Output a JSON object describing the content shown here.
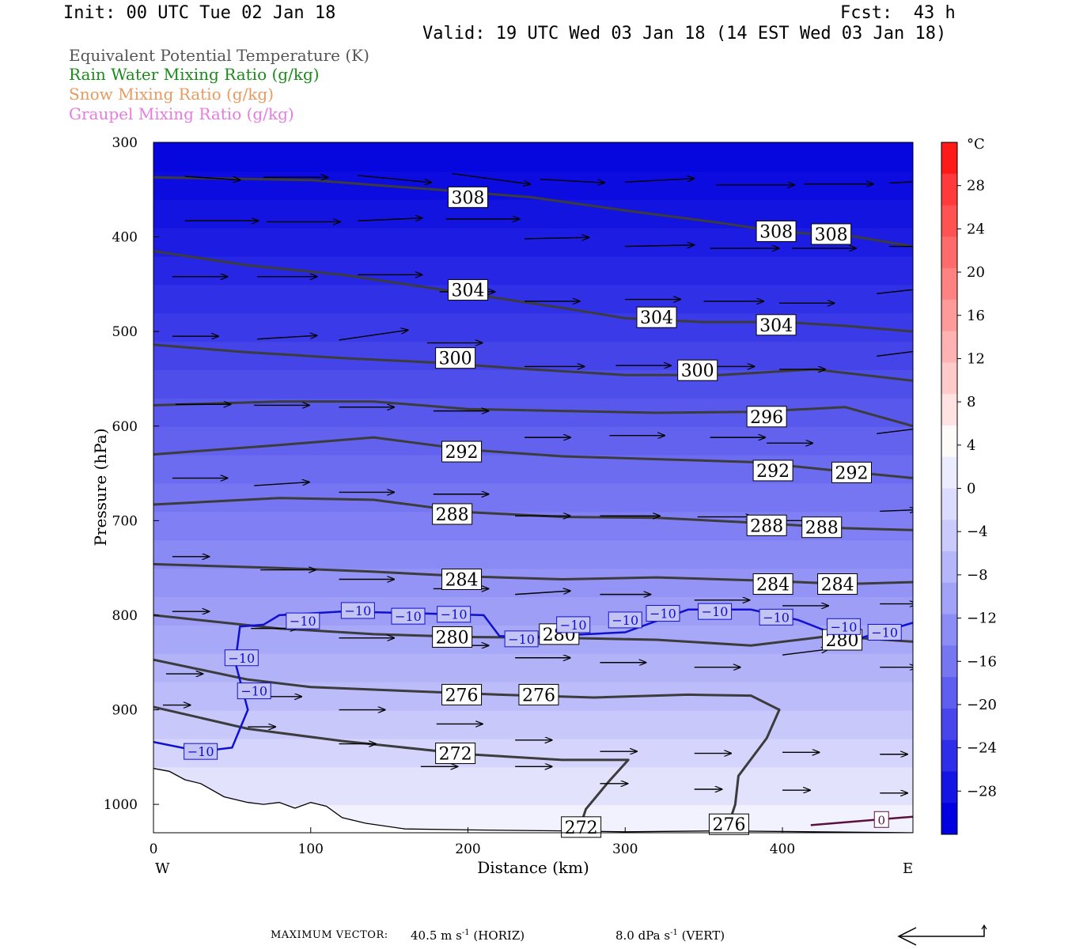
{
  "header": {
    "init": "Init: 00 UTC Tue 02 Jan 18",
    "fcst": "Fcst:  43 h",
    "valid": "Valid: 19 UTC Wed 03 Jan 18 (14 EST Wed 03 Jan 18)"
  },
  "fields": [
    {
      "label": "Equivalent Potential Temperature (K)",
      "color": "#555555"
    },
    {
      "label": "Rain Water Mixing Ratio (g/kg)",
      "color": "#1a8a1a"
    },
    {
      "label": "Snow Mixing Ratio (g/kg)",
      "color": "#e89a60"
    },
    {
      "label": "Graupel Mixing Ratio (g/kg)",
      "color": "#e87ae0"
    }
  ],
  "footer": {
    "max_vector_label": "MAXIMUM VECTOR:",
    "horiz": "40.5 m s",
    "horiz_unit": "-1",
    "horiz_tag": "(HORIZ)",
    "vert": "8.0 dPa s",
    "vert_unit": "-1",
    "vert_tag": "(VERT)"
  },
  "chart_data": {
    "type": "heatmap",
    "xlabel": "Distance (km)",
    "ylabel": "Pressure (hPa)",
    "xlim": [
      0,
      483
    ],
    "ylim": [
      1030,
      300
    ],
    "xticks": [
      0,
      100,
      200,
      300,
      400
    ],
    "yticks": [
      300,
      400,
      500,
      600,
      700,
      800,
      900,
      1000
    ],
    "x_end_labels": {
      "left": "W",
      "right": "E"
    },
    "colorbar": {
      "unit": "°C",
      "ticks": [
        28,
        24,
        20,
        16,
        12,
        8,
        4,
        0,
        -4,
        -8,
        -12,
        -16,
        -20,
        -24,
        -28
      ],
      "colors": [
        "#ff1a1a",
        "#ff3a3a",
        "#ff5252",
        "#ff6a6a",
        "#ff8282",
        "#ff9a9a",
        "#ffb2b2",
        "#ffcaca",
        "#ffe2e2",
        "#fffafa",
        "#ececff",
        "#dcdcff",
        "#cacafd",
        "#b6b6fb",
        "#a2a2f8",
        "#8c8cf6",
        "#7676f3",
        "#5e5ef0",
        "#4646ec",
        "#2e2ee8",
        "#1414e4",
        "#0000e0"
      ]
    },
    "temperature_band_levels_hPa": [
      1030,
      1000,
      960,
      930,
      900,
      870,
      840,
      810,
      780,
      750,
      720,
      690,
      660,
      630,
      600,
      570,
      540,
      510,
      480,
      450,
      420,
      390,
      360,
      330,
      300
    ],
    "temperature_band_colors": [
      "#f2f2fe",
      "#e2e2fd",
      "#d4d4fc",
      "#c8c8fb",
      "#bcbcfa",
      "#b2b2f9",
      "#a8a8f8",
      "#9e9ef7",
      "#9494f6",
      "#8a8af5",
      "#8080f4",
      "#7676f2",
      "#6c6cf1",
      "#6262ef",
      "#5858ed",
      "#4e4eeb",
      "#4444e9",
      "#3a3ae8",
      "#3030e6",
      "#2626e4",
      "#1c1ce3",
      "#1414e1",
      "#0c0ce0",
      "#0606df"
    ],
    "theta_e_contours": [
      {
        "level": 308,
        "points": [
          [
            0,
            337
          ],
          [
            100,
            340
          ],
          [
            180,
            350
          ],
          [
            240,
            358
          ],
          [
            300,
            372
          ],
          [
            360,
            385
          ],
          [
            400,
            395
          ],
          [
            440,
            398
          ],
          [
            483,
            410
          ]
        ],
        "labels": [
          [
            200,
            358
          ],
          [
            396,
            394
          ],
          [
            431,
            397
          ]
        ]
      },
      {
        "level": 304,
        "points": [
          [
            0,
            415
          ],
          [
            60,
            430
          ],
          [
            120,
            440
          ],
          [
            200,
            460
          ],
          [
            260,
            475
          ],
          [
            300,
            486
          ],
          [
            350,
            490
          ],
          [
            400,
            490
          ],
          [
            440,
            494
          ],
          [
            483,
            500
          ]
        ],
        "labels": [
          [
            200,
            456
          ],
          [
            320,
            485
          ],
          [
            396,
            493
          ]
        ]
      },
      {
        "level": 300,
        "points": [
          [
            0,
            514
          ],
          [
            60,
            522
          ],
          [
            120,
            528
          ],
          [
            180,
            533
          ],
          [
            240,
            540
          ],
          [
            300,
            546
          ],
          [
            360,
            546
          ],
          [
            420,
            540
          ],
          [
            483,
            552
          ]
        ],
        "labels": [
          [
            192,
            528
          ],
          [
            346,
            541
          ]
        ]
      },
      {
        "level": 296,
        "points": [
          [
            0,
            578
          ],
          [
            80,
            574
          ],
          [
            140,
            574
          ],
          [
            200,
            582
          ],
          [
            260,
            584
          ],
          [
            320,
            586
          ],
          [
            380,
            585
          ],
          [
            440,
            580
          ],
          [
            483,
            600
          ]
        ],
        "labels": [
          [
            390,
            590
          ]
        ]
      },
      {
        "level": 292,
        "points": [
          [
            0,
            630
          ],
          [
            80,
            620
          ],
          [
            140,
            612
          ],
          [
            200,
            625
          ],
          [
            260,
            632
          ],
          [
            320,
            635
          ],
          [
            380,
            638
          ],
          [
            440,
            648
          ],
          [
            483,
            655
          ]
        ],
        "labels": [
          [
            196,
            627
          ],
          [
            394,
            647
          ],
          [
            444,
            649
          ]
        ]
      },
      {
        "level": 288,
        "points": [
          [
            0,
            683
          ],
          [
            80,
            676
          ],
          [
            140,
            678
          ],
          [
            200,
            691
          ],
          [
            260,
            696
          ],
          [
            320,
            697
          ],
          [
            380,
            702
          ],
          [
            440,
            708
          ],
          [
            483,
            710
          ]
        ],
        "labels": [
          [
            190,
            693
          ],
          [
            390,
            705
          ],
          [
            425,
            707
          ]
        ]
      },
      {
        "level": 284,
        "points": [
          [
            0,
            746
          ],
          [
            80,
            750
          ],
          [
            140,
            754
          ],
          [
            200,
            759
          ],
          [
            260,
            762
          ],
          [
            320,
            760
          ],
          [
            380,
            763
          ],
          [
            440,
            767
          ],
          [
            483,
            765
          ]
        ],
        "labels": [
          [
            196,
            762
          ],
          [
            394,
            767
          ],
          [
            435,
            767
          ]
        ]
      },
      {
        "level": 280,
        "points": [
          [
            0,
            800
          ],
          [
            80,
            814
          ],
          [
            140,
            820
          ],
          [
            200,
            823
          ],
          [
            260,
            824
          ],
          [
            320,
            826
          ],
          [
            380,
            832
          ],
          [
            430,
            822
          ],
          [
            483,
            828
          ]
        ],
        "labels": [
          [
            190,
            823
          ],
          [
            258,
            820
          ],
          [
            438,
            826
          ]
        ]
      },
      {
        "level": 276,
        "points": [
          [
            0,
            847
          ],
          [
            60,
            868
          ],
          [
            100,
            876
          ],
          [
            160,
            880
          ],
          [
            220,
            884
          ],
          [
            280,
            887
          ],
          [
            340,
            884
          ],
          [
            380,
            885
          ],
          [
            398,
            900
          ],
          [
            390,
            930
          ],
          [
            372,
            970
          ],
          [
            370,
            1000
          ],
          [
            365,
            1025
          ]
        ],
        "labels": [
          [
            196,
            884
          ],
          [
            245,
            884
          ],
          [
            366,
            1021
          ]
        ]
      },
      {
        "level": 272,
        "points": [
          [
            0,
            897
          ],
          [
            60,
            920
          ],
          [
            120,
            933
          ],
          [
            200,
            947
          ],
          [
            260,
            953
          ],
          [
            302,
            953
          ],
          [
            290,
            975
          ],
          [
            275,
            1005
          ],
          [
            270,
            1030
          ]
        ],
        "labels": [
          [
            192,
            946
          ],
          [
            272,
            1024
          ]
        ]
      }
    ],
    "minus10_isotherm": {
      "level": -10,
      "points": [
        [
          0,
          934
        ],
        [
          30,
          944
        ],
        [
          50,
          940
        ],
        [
          60,
          900
        ],
        [
          52,
          850
        ],
        [
          55,
          812
        ],
        [
          70,
          810
        ],
        [
          80,
          800
        ],
        [
          120,
          796
        ],
        [
          170,
          798
        ],
        [
          210,
          800
        ],
        [
          220,
          822
        ],
        [
          240,
          823
        ],
        [
          300,
          818
        ],
        [
          340,
          794
        ],
        [
          380,
          794
        ],
        [
          410,
          805
        ],
        [
          430,
          818
        ],
        [
          450,
          824
        ],
        [
          483,
          808
        ]
      ],
      "labels": [
        [
          30,
          944
        ],
        [
          95,
          806
        ],
        [
          56,
          845
        ],
        [
          64,
          880
        ],
        [
          130,
          795
        ],
        [
          162,
          801
        ],
        [
          191,
          799
        ],
        [
          234,
          825
        ],
        [
          267,
          810
        ],
        [
          300,
          805
        ],
        [
          324,
          798
        ],
        [
          357,
          796
        ],
        [
          396,
          802
        ],
        [
          439,
          812
        ],
        [
          465,
          818
        ]
      ]
    },
    "freezing_line_0C": {
      "points": [
        [
          418,
          1022
        ],
        [
          483,
          1013
        ]
      ],
      "label_at": [
        463,
        1016
      ]
    },
    "terrain_surface": [
      [
        0,
        962
      ],
      [
        10,
        965
      ],
      [
        20,
        974
      ],
      [
        30,
        978
      ],
      [
        45,
        992
      ],
      [
        60,
        998
      ],
      [
        70,
        1000
      ],
      [
        80,
        998
      ],
      [
        90,
        1004
      ],
      [
        100,
        998
      ],
      [
        110,
        1002
      ],
      [
        120,
        1014
      ],
      [
        135,
        1020
      ],
      [
        160,
        1026
      ],
      [
        200,
        1027
      ],
      [
        260,
        1028
      ],
      [
        300,
        1029
      ],
      [
        360,
        1028
      ],
      [
        420,
        1029
      ],
      [
        483,
        1030
      ]
    ],
    "wind_vectors": [
      [
        20,
        336,
        12,
        0.5
      ],
      [
        70,
        337,
        14,
        0
      ],
      [
        130,
        335,
        16,
        1
      ],
      [
        190,
        333,
        17,
        1.5
      ],
      [
        246,
        339,
        14,
        0.5
      ],
      [
        300,
        342,
        15,
        -0.5
      ],
      [
        358,
        345,
        17,
        0
      ],
      [
        414,
        344,
        15,
        0
      ],
      [
        468,
        343,
        16,
        -0.5
      ],
      [
        483,
        340,
        6,
        0
      ],
      [
        20,
        383,
        16,
        0
      ],
      [
        72,
        384,
        16,
        0
      ],
      [
        130,
        383,
        14,
        -0.4
      ],
      [
        186,
        381,
        16,
        0
      ],
      [
        236,
        402,
        14,
        -0.2
      ],
      [
        300,
        410,
        15,
        -0.2
      ],
      [
        354,
        412,
        15,
        0
      ],
      [
        406,
        412,
        14,
        0
      ],
      [
        468,
        410,
        12,
        0
      ],
      [
        12,
        442,
        12,
        0
      ],
      [
        66,
        442,
        13,
        0
      ],
      [
        130,
        440,
        14,
        0
      ],
      [
        182,
        458,
        12,
        0
      ],
      [
        236,
        468,
        12,
        0
      ],
      [
        300,
        466,
        12,
        0
      ],
      [
        350,
        468,
        13,
        0
      ],
      [
        398,
        470,
        12,
        0
      ],
      [
        460,
        460,
        14,
        -1
      ],
      [
        12,
        505,
        10,
        0
      ],
      [
        66,
        508,
        13,
        -0.5
      ],
      [
        118,
        509,
        15,
        -1.4
      ],
      [
        174,
        512,
        12,
        0
      ],
      [
        236,
        537,
        13,
        0
      ],
      [
        294,
        536,
        12,
        0
      ],
      [
        350,
        537,
        11,
        0
      ],
      [
        398,
        540,
        10,
        0
      ],
      [
        460,
        526,
        10,
        -0.8
      ],
      [
        14,
        577,
        12,
        0
      ],
      [
        64,
        578,
        12,
        0
      ],
      [
        118,
        580,
        12,
        0
      ],
      [
        178,
        584,
        12,
        0
      ],
      [
        236,
        612,
        10,
        0
      ],
      [
        290,
        610,
        12,
        0
      ],
      [
        354,
        612,
        12,
        0
      ],
      [
        390,
        618,
        10,
        0
      ],
      [
        460,
        608,
        10,
        -0.8
      ],
      [
        12,
        655,
        12,
        0
      ],
      [
        64,
        663,
        12,
        -0.5
      ],
      [
        118,
        670,
        12,
        0
      ],
      [
        178,
        672,
        12,
        0
      ],
      [
        230,
        695,
        12,
        0
      ],
      [
        284,
        695,
        13,
        0
      ],
      [
        346,
        696,
        12,
        0
      ],
      [
        400,
        700,
        12,
        0
      ],
      [
        462,
        690,
        8,
        -0.2
      ],
      [
        12,
        738,
        8,
        0
      ],
      [
        68,
        752,
        12,
        0
      ],
      [
        118,
        762,
        12,
        0
      ],
      [
        178,
        772,
        12,
        0
      ],
      [
        230,
        778,
        12,
        -0.5
      ],
      [
        284,
        778,
        11,
        0
      ],
      [
        344,
        784,
        12,
        0
      ],
      [
        400,
        790,
        10,
        0
      ],
      [
        462,
        788,
        8,
        0
      ],
      [
        12,
        796,
        8,
        0
      ],
      [
        62,
        814,
        10,
        0
      ],
      [
        118,
        824,
        12,
        0
      ],
      [
        178,
        832,
        12,
        0
      ],
      [
        230,
        845,
        12,
        0
      ],
      [
        284,
        850,
        10,
        0
      ],
      [
        344,
        855,
        10,
        0
      ],
      [
        400,
        842,
        10,
        -0.8
      ],
      [
        462,
        855,
        8,
        0
      ],
      [
        8,
        862,
        8,
        0
      ],
      [
        62,
        886,
        11,
        0
      ],
      [
        118,
        900,
        10,
        0
      ],
      [
        180,
        915,
        10,
        0
      ],
      [
        230,
        932,
        8,
        0
      ],
      [
        284,
        944,
        8,
        0
      ],
      [
        344,
        946,
        8,
        0
      ],
      [
        400,
        945,
        8,
        0
      ],
      [
        462,
        947,
        6,
        0
      ],
      [
        6,
        895,
        6,
        0
      ],
      [
        60,
        918,
        6,
        0
      ],
      [
        118,
        936,
        8,
        0
      ],
      [
        170,
        960,
        8,
        0
      ],
      [
        230,
        960,
        8,
        0
      ],
      [
        284,
        978,
        6,
        0
      ],
      [
        344,
        984,
        6,
        0
      ],
      [
        400,
        985,
        6,
        0
      ],
      [
        462,
        988,
        6,
        0
      ]
    ],
    "max_vector": {
      "horiz": 40.5,
      "horiz_units": "m s-1",
      "vert": 8.0,
      "vert_units": "dPa s-1"
    }
  }
}
